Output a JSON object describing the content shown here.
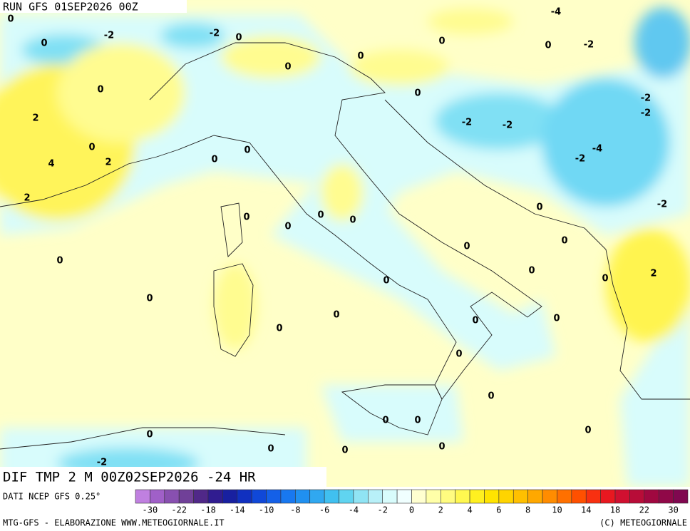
{
  "header": {
    "run": "RUN GFS 01SEP2026 00Z"
  },
  "field_title": "DIF TMP 2 M 00Z02SEP2026 -24 HR",
  "source": "DATI NCEP GFS 0.25°",
  "contour_labels": [
    0,
    0,
    -2,
    -2,
    0,
    0,
    0,
    0,
    0,
    -2,
    -4,
    0,
    2,
    0,
    4,
    2,
    2,
    0,
    0,
    0,
    -2,
    -2,
    -2,
    -2,
    -4,
    -2,
    -2,
    0,
    0,
    0,
    0,
    0,
    0,
    0,
    0,
    0,
    2,
    0,
    0,
    0,
    0,
    0,
    0,
    0,
    0,
    0,
    0,
    0,
    0,
    0,
    0,
    0,
    0,
    -2
  ],
  "colorbar": {
    "colors": [
      "#c080e0",
      "#a060c8",
      "#8850b0",
      "#704098",
      "#502888",
      "#301c90",
      "#1820a0",
      "#1030c0",
      "#1048d8",
      "#1460e8",
      "#1878f0",
      "#2090f0",
      "#30a8f0",
      "#40c0f0",
      "#60d4f0",
      "#90e4f4",
      "#b8f0f8",
      "#d8fcfc",
      "#f0ffff",
      "#ffffd0",
      "#ffffa8",
      "#fffc80",
      "#fff850",
      "#fff020",
      "#ffe400",
      "#ffd400",
      "#ffc000",
      "#ffa800",
      "#ff8c00",
      "#ff7000",
      "#ff5000",
      "#f83010",
      "#e81820",
      "#d01030",
      "#b80c38",
      "#a00840",
      "#900848",
      "#800850"
    ],
    "labels": [
      -30,
      -22,
      -18,
      -14,
      -10,
      -8,
      -6,
      -4,
      -2,
      0,
      2,
      4,
      6,
      8,
      10,
      14,
      18,
      22,
      30
    ]
  },
  "footer": {
    "left": "MTG-GFS - ELABORAZIONE WWW.METEOGIORNALE.IT",
    "right": "(C) METEOGIORNALE"
  }
}
